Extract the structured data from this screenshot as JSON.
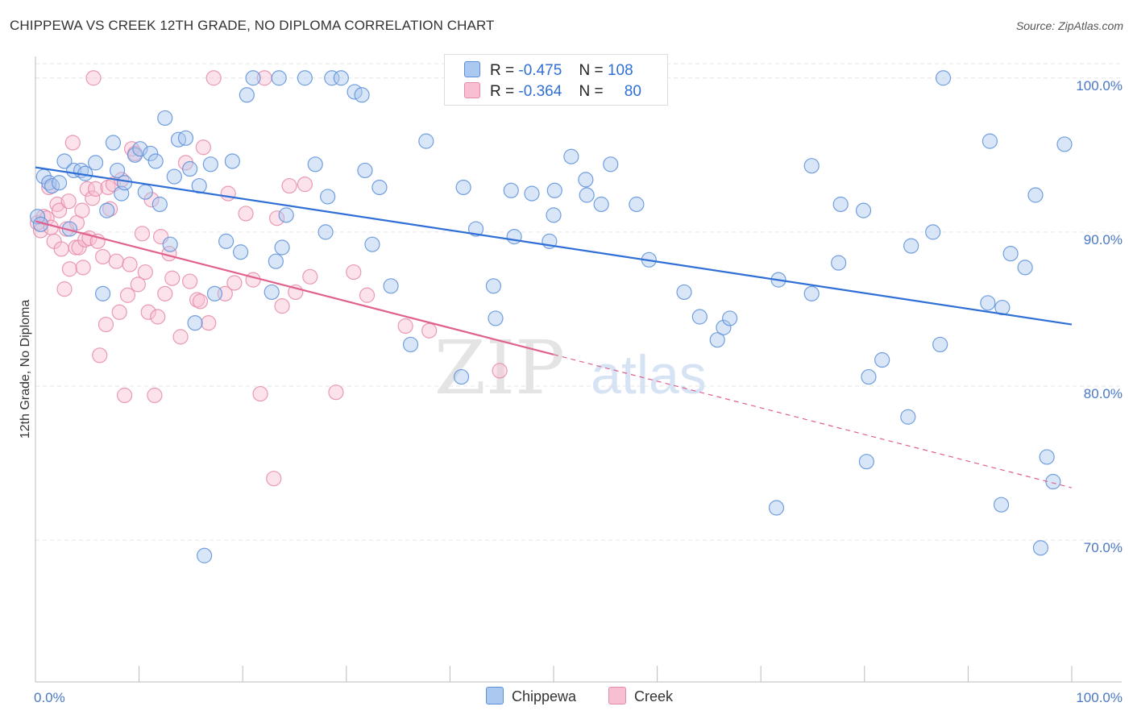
{
  "title": "CHIPPEWA VS CREEK 12TH GRADE, NO DIPLOMA CORRELATION CHART",
  "source": "Source: ZipAtlas.com",
  "watermark": {
    "zip": "ZIP",
    "atlas": "atlas"
  },
  "legend": {
    "r_label": "R =",
    "n_label": "N =",
    "entries": [
      {
        "name": "Chippewa",
        "r": "-0.475",
        "n": "108",
        "fill": "#aac8f0",
        "stroke": "#5b8fd8"
      },
      {
        "name": "Creek",
        "r": "-0.364",
        "n": "80",
        "fill": "#f8bfd2",
        "stroke": "#e58aa8"
      }
    ]
  },
  "colors": {
    "chippewa_line": "#2f6fd6",
    "creek_line": "#e0608e",
    "axis_text": "#4a78c4",
    "grid": "#e6e6e6"
  },
  "chart_data": {
    "type": "scatter",
    "title": "CHIPPEWA VS CREEK 12TH GRADE, NO DIPLOMA CORRELATION CHART",
    "xlabel": "",
    "ylabel": "12th Grade, No Diploma",
    "xlim": [
      0,
      100
    ],
    "ylim": [
      60.8,
      101.4
    ],
    "x_ticks": [
      "0.0%",
      "100.0%"
    ],
    "y_ticks": [
      {
        "value": 70,
        "label": "70.0%"
      },
      {
        "value": 80,
        "label": "80.0%"
      },
      {
        "value": 90,
        "label": "90.0%"
      },
      {
        "value": 100,
        "label": "100.0%"
      }
    ],
    "grid": true,
    "legend_position": "top-center",
    "series": [
      {
        "name": "Chippewa",
        "trend": {
          "x": [
            0,
            100
          ],
          "y": [
            94.2,
            84.0
          ],
          "dashed_from": null
        },
        "points": [
          [
            0.2,
            91.0
          ],
          [
            0.5,
            90.5
          ],
          [
            0.8,
            93.6
          ],
          [
            1.3,
            93.2
          ],
          [
            1.6,
            93.0
          ],
          [
            2.3,
            93.2
          ],
          [
            2.8,
            94.6
          ],
          [
            3.3,
            90.2
          ],
          [
            3.7,
            94.0
          ],
          [
            4.4,
            94.0
          ],
          [
            4.8,
            93.8
          ],
          [
            5.8,
            94.5
          ],
          [
            6.5,
            86.0
          ],
          [
            6.9,
            91.4
          ],
          [
            7.5,
            95.8
          ],
          [
            7.9,
            94.0
          ],
          [
            8.3,
            92.5
          ],
          [
            8.6,
            93.2
          ],
          [
            9.6,
            95.0
          ],
          [
            10.1,
            95.4
          ],
          [
            10.6,
            92.6
          ],
          [
            11.1,
            95.1
          ],
          [
            11.6,
            94.6
          ],
          [
            12.0,
            91.8
          ],
          [
            12.5,
            97.4
          ],
          [
            13.0,
            89.2
          ],
          [
            13.4,
            93.6
          ],
          [
            13.8,
            96.0
          ],
          [
            14.5,
            96.1
          ],
          [
            14.9,
            94.1
          ],
          [
            15.4,
            84.1
          ],
          [
            15.8,
            93.0
          ],
          [
            16.3,
            69.0
          ],
          [
            16.9,
            94.4
          ],
          [
            17.3,
            86.0
          ],
          [
            18.4,
            89.4
          ],
          [
            19.0,
            94.6
          ],
          [
            19.8,
            88.7
          ],
          [
            20.4,
            98.9
          ],
          [
            21.0,
            100.0
          ],
          [
            22.8,
            86.1
          ],
          [
            23.2,
            88.1
          ],
          [
            23.5,
            100.0
          ],
          [
            23.8,
            89.0
          ],
          [
            24.2,
            91.1
          ],
          [
            26.0,
            100.0
          ],
          [
            27.0,
            94.4
          ],
          [
            28.0,
            90.0
          ],
          [
            28.2,
            92.3
          ],
          [
            28.6,
            100.0
          ],
          [
            29.5,
            100.0
          ],
          [
            30.8,
            99.1
          ],
          [
            31.5,
            98.9
          ],
          [
            31.8,
            94.0
          ],
          [
            32.5,
            89.2
          ],
          [
            33.2,
            92.9
          ],
          [
            34.3,
            86.5
          ],
          [
            36.2,
            82.7
          ],
          [
            37.7,
            95.9
          ],
          [
            41.1,
            80.6
          ],
          [
            41.3,
            92.9
          ],
          [
            42.5,
            90.2
          ],
          [
            44.2,
            86.5
          ],
          [
            44.4,
            84.4
          ],
          [
            45.9,
            92.7
          ],
          [
            46.2,
            89.7
          ],
          [
            47.9,
            92.5
          ],
          [
            49.6,
            89.4
          ],
          [
            50.0,
            91.1
          ],
          [
            50.1,
            92.7
          ],
          [
            51.7,
            94.9
          ],
          [
            53.1,
            93.4
          ],
          [
            53.2,
            92.4
          ],
          [
            54.6,
            91.8
          ],
          [
            55.5,
            94.4
          ],
          [
            58.0,
            91.8
          ],
          [
            59.2,
            88.2
          ],
          [
            62.6,
            86.1
          ],
          [
            64.1,
            84.5
          ],
          [
            65.8,
            83.0
          ],
          [
            66.4,
            83.8
          ],
          [
            67.0,
            84.4
          ],
          [
            71.5,
            72.1
          ],
          [
            71.7,
            86.9
          ],
          [
            74.9,
            86.0
          ],
          [
            74.9,
            94.3
          ],
          [
            77.5,
            88.0
          ],
          [
            77.7,
            91.8
          ],
          [
            79.9,
            91.4
          ],
          [
            80.2,
            75.1
          ],
          [
            80.4,
            80.6
          ],
          [
            81.7,
            81.7
          ],
          [
            84.2,
            78.0
          ],
          [
            84.5,
            89.1
          ],
          [
            86.6,
            90.0
          ],
          [
            87.3,
            82.7
          ],
          [
            87.6,
            100.0
          ],
          [
            91.9,
            85.4
          ],
          [
            92.1,
            95.9
          ],
          [
            93.2,
            72.3
          ],
          [
            93.3,
            85.1
          ],
          [
            94.1,
            88.6
          ],
          [
            95.5,
            87.7
          ],
          [
            96.5,
            92.4
          ],
          [
            97.0,
            69.5
          ],
          [
            97.6,
            75.4
          ],
          [
            98.2,
            73.8
          ],
          [
            99.3,
            95.7
          ]
        ]
      },
      {
        "name": "Creek",
        "trend": {
          "x": [
            0,
            100
          ],
          "y": [
            90.7,
            73.4
          ],
          "dashed_from": 50
        },
        "points": [
          [
            0.2,
            90.6
          ],
          [
            0.5,
            90.1
          ],
          [
            0.8,
            91.0
          ],
          [
            1.1,
            90.9
          ],
          [
            1.3,
            92.9
          ],
          [
            1.5,
            90.3
          ],
          [
            1.8,
            89.4
          ],
          [
            2.1,
            91.8
          ],
          [
            2.3,
            91.4
          ],
          [
            2.5,
            88.9
          ],
          [
            2.8,
            86.3
          ],
          [
            3.0,
            90.2
          ],
          [
            3.2,
            92.0
          ],
          [
            3.3,
            87.6
          ],
          [
            3.6,
            95.8
          ],
          [
            3.9,
            89.0
          ],
          [
            4.0,
            90.6
          ],
          [
            4.2,
            89.0
          ],
          [
            4.5,
            91.4
          ],
          [
            4.6,
            87.7
          ],
          [
            4.8,
            89.5
          ],
          [
            5.0,
            92.8
          ],
          [
            5.2,
            89.6
          ],
          [
            5.5,
            92.2
          ],
          [
            5.6,
            100.0
          ],
          [
            5.8,
            92.8
          ],
          [
            6.0,
            89.4
          ],
          [
            6.2,
            82.0
          ],
          [
            6.5,
            88.4
          ],
          [
            6.8,
            84.0
          ],
          [
            7.0,
            92.9
          ],
          [
            7.2,
            91.5
          ],
          [
            7.5,
            93.1
          ],
          [
            7.8,
            88.1
          ],
          [
            8.1,
            84.8
          ],
          [
            8.3,
            93.4
          ],
          [
            8.6,
            79.4
          ],
          [
            8.9,
            85.9
          ],
          [
            9.1,
            87.9
          ],
          [
            9.3,
            95.4
          ],
          [
            9.6,
            95.1
          ],
          [
            9.9,
            86.6
          ],
          [
            10.3,
            89.9
          ],
          [
            10.6,
            87.4
          ],
          [
            10.9,
            84.8
          ],
          [
            11.2,
            92.1
          ],
          [
            11.5,
            79.4
          ],
          [
            11.8,
            84.5
          ],
          [
            12.1,
            89.7
          ],
          [
            12.5,
            86.0
          ],
          [
            12.9,
            88.6
          ],
          [
            13.2,
            87.0
          ],
          [
            14.0,
            83.2
          ],
          [
            14.5,
            94.5
          ],
          [
            14.9,
            86.8
          ],
          [
            15.6,
            85.6
          ],
          [
            15.9,
            85.5
          ],
          [
            16.2,
            95.5
          ],
          [
            16.7,
            84.1
          ],
          [
            18.3,
            86.0
          ],
          [
            18.6,
            92.5
          ],
          [
            19.2,
            86.7
          ],
          [
            20.3,
            91.2
          ],
          [
            21.0,
            86.9
          ],
          [
            21.7,
            79.5
          ],
          [
            22.1,
            100.0
          ],
          [
            23.0,
            74.0
          ],
          [
            23.3,
            90.9
          ],
          [
            23.8,
            85.2
          ],
          [
            24.5,
            93.0
          ],
          [
            25.1,
            86.1
          ],
          [
            26.0,
            93.1
          ],
          [
            26.5,
            87.1
          ],
          [
            29.0,
            79.6
          ],
          [
            30.7,
            87.4
          ],
          [
            32.0,
            85.9
          ],
          [
            35.7,
            83.9
          ],
          [
            38.0,
            83.6
          ],
          [
            44.8,
            81.0
          ],
          [
            17.2,
            100.0
          ]
        ]
      }
    ]
  }
}
